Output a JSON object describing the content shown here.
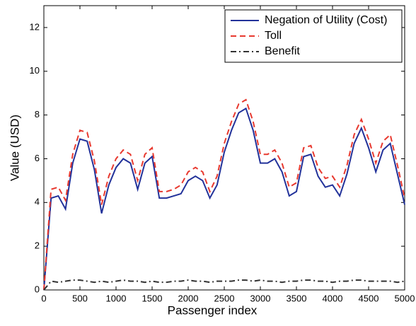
{
  "chart_data": {
    "type": "line",
    "xlabel": "Passenger index",
    "ylabel": "Value (USD)",
    "x": [
      0,
      100,
      200,
      300,
      400,
      500,
      600,
      700,
      800,
      900,
      1000,
      1100,
      1200,
      1300,
      1400,
      1500,
      1600,
      1700,
      1800,
      1900,
      2000,
      2100,
      2200,
      2300,
      2400,
      2500,
      2600,
      2700,
      2800,
      2900,
      3000,
      3100,
      3200,
      3300,
      3400,
      3500,
      3600,
      3700,
      3800,
      3900,
      4000,
      4100,
      4200,
      4300,
      4400,
      4500,
      4600,
      4700,
      4800,
      4900,
      5000
    ],
    "series": [
      {
        "name": "Negation of Utility (Cost)",
        "color": "#22329a",
        "style": "solid",
        "values": [
          0,
          4.2,
          4.3,
          3.7,
          5.8,
          6.9,
          6.8,
          5.5,
          3.5,
          4.8,
          5.6,
          6.0,
          5.8,
          4.6,
          5.8,
          6.1,
          4.2,
          4.2,
          4.3,
          4.4,
          5.0,
          5.2,
          5.0,
          4.2,
          4.8,
          6.3,
          7.3,
          8.1,
          8.3,
          7.3,
          5.8,
          5.8,
          6.0,
          5.4,
          4.3,
          4.5,
          6.1,
          6.2,
          5.2,
          4.7,
          4.8,
          4.3,
          5.3,
          6.7,
          7.4,
          6.5,
          5.4,
          6.4,
          6.7,
          5.3,
          3.9
        ]
      },
      {
        "name": "Toll",
        "color": "#e8392f",
        "style": "dashed",
        "values": [
          0,
          4.6,
          4.7,
          4.1,
          6.2,
          7.3,
          7.2,
          5.9,
          3.9,
          5.2,
          6.0,
          6.4,
          6.2,
          5.0,
          6.2,
          6.5,
          4.5,
          4.5,
          4.6,
          4.8,
          5.4,
          5.6,
          5.4,
          4.5,
          5.2,
          6.7,
          7.7,
          8.5,
          8.7,
          7.7,
          6.2,
          6.2,
          6.4,
          5.8,
          4.7,
          4.9,
          6.5,
          6.6,
          5.6,
          5.1,
          5.2,
          4.7,
          5.7,
          7.1,
          7.8,
          6.9,
          5.8,
          6.8,
          7.1,
          5.7,
          4.2
        ]
      },
      {
        "name": "Benefit",
        "color": "#333333",
        "style": "dashdot",
        "values": [
          0,
          0.4,
          0.35,
          0.4,
          0.45,
          0.45,
          0.4,
          0.35,
          0.4,
          0.35,
          0.4,
          0.45,
          0.4,
          0.4,
          0.35,
          0.4,
          0.35,
          0.35,
          0.4,
          0.4,
          0.45,
          0.4,
          0.4,
          0.35,
          0.4,
          0.4,
          0.4,
          0.45,
          0.45,
          0.4,
          0.45,
          0.4,
          0.4,
          0.35,
          0.4,
          0.4,
          0.45,
          0.45,
          0.4,
          0.4,
          0.35,
          0.4,
          0.4,
          0.45,
          0.45,
          0.4,
          0.4,
          0.4,
          0.4,
          0.35,
          0.4
        ]
      }
    ],
    "xlim": [
      0,
      5000
    ],
    "xticks": [
      0,
      500,
      1000,
      1500,
      2000,
      2500,
      3000,
      3500,
      4000,
      4500,
      5000
    ],
    "ylim": [
      0,
      13
    ],
    "yticks": [
      0,
      2,
      4,
      6,
      8,
      10,
      12
    ],
    "grid": false,
    "legend": "top-right"
  }
}
